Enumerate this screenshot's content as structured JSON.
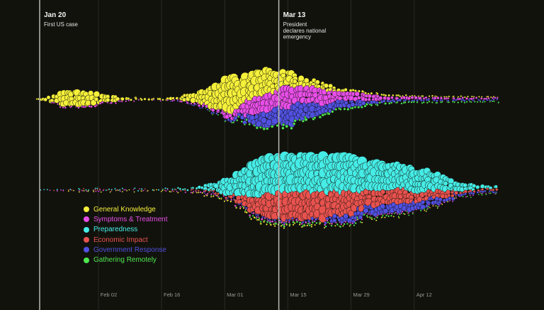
{
  "chart_data": {
    "type": "scatter",
    "subtype": "beeswarm-timeline",
    "x_axis": {
      "type": "date",
      "range": [
        "2020-01-19",
        "2020-04-30"
      ],
      "ticks": [
        {
          "date": "2020-02-02",
          "label": "Feb 02"
        },
        {
          "date": "2020-02-16",
          "label": "Feb 16"
        },
        {
          "date": "2020-03-01",
          "label": "Mar 01"
        },
        {
          "date": "2020-03-15",
          "label": "Mar 15"
        },
        {
          "date": "2020-03-29",
          "label": "Mar 29"
        },
        {
          "date": "2020-04-12",
          "label": "Apr 12"
        }
      ],
      "grid": true
    },
    "events": [
      {
        "date": "2020-01-20",
        "title": "Jan 20",
        "lines": [
          "First US case"
        ]
      },
      {
        "date": "2020-03-13",
        "title": "Mar 13",
        "lines": [
          "President",
          "declares national",
          "emergency"
        ]
      }
    ],
    "legend": {
      "placement": "bottom-left",
      "entries": [
        {
          "name": "General Knowledge",
          "color": "#f5f03a"
        },
        {
          "name": "Symptoms & Treatment",
          "color": "#e84ee8"
        },
        {
          "name": "Preparedness",
          "color": "#46ece6"
        },
        {
          "name": "Economic Impact",
          "color": "#e8524e"
        },
        {
          "name": "Government Response",
          "color": "#5050e0"
        },
        {
          "name": "Gathering Remotely",
          "color": "#4ee84e"
        }
      ]
    },
    "week_starts": [
      "2020-01-19",
      "2020-01-26",
      "2020-02-02",
      "2020-02-09",
      "2020-02-16",
      "2020-02-23",
      "2020-03-01",
      "2020-03-08",
      "2020-03-15",
      "2020-03-22",
      "2020-03-29",
      "2020-04-05",
      "2020-04-12",
      "2020-04-19",
      "2020-04-26"
    ],
    "swarms": [
      {
        "series": [
          {
            "category": "General Knowledge",
            "values": [
              3,
              45,
              35,
              12,
              8,
              30,
              65,
              60,
              40,
              25,
              15,
              8,
              5,
              4,
              3
            ]
          },
          {
            "category": "Symptoms & Treatment",
            "values": [
              0,
              6,
              8,
              3,
              2,
              8,
              22,
              45,
              50,
              40,
              30,
              20,
              15,
              10,
              8
            ]
          },
          {
            "category": "Government Response",
            "values": [
              0,
              0,
              0,
              0,
              0,
              2,
              8,
              35,
              45,
              35,
              25,
              15,
              10,
              8,
              5
            ]
          },
          {
            "category": "Gathering Remotely",
            "values": [
              0,
              0,
              0,
              0,
              0,
              0,
              2,
              10,
              15,
              12,
              10,
              8,
              5,
              4,
              3
            ]
          }
        ]
      },
      {
        "series": [
          {
            "category": "Preparedness",
            "values": [
              0,
              3,
              2,
              2,
              3,
              10,
              40,
              70,
              75,
              70,
              65,
              60,
              55,
              40,
              20
            ]
          },
          {
            "category": "Economic Impact",
            "values": [
              0,
              1,
              1,
              0,
              1,
              3,
              10,
              45,
              60,
              55,
              50,
              40,
              35,
              25,
              10
            ]
          },
          {
            "category": "Government Response",
            "values": [
              0,
              0,
              0,
              0,
              0,
              0,
              2,
              5,
              8,
              15,
              30,
              35,
              30,
              20,
              8
            ]
          },
          {
            "category": "Symptoms & Treatment",
            "values": [
              0,
              2,
              2,
              1,
              1,
              3,
              5,
              8,
              6,
              5,
              4,
              3,
              3,
              2,
              1
            ]
          },
          {
            "category": "Gathering Remotely",
            "values": [
              0,
              0,
              0,
              0,
              0,
              0,
              1,
              5,
              8,
              6,
              5,
              4,
              3,
              2,
              1
            ]
          },
          {
            "category": "General Knowledge",
            "values": [
              0,
              1,
              1,
              1,
              1,
              2,
              4,
              5,
              4,
              3,
              2,
              2,
              1,
              1,
              0
            ]
          }
        ]
      }
    ]
  }
}
